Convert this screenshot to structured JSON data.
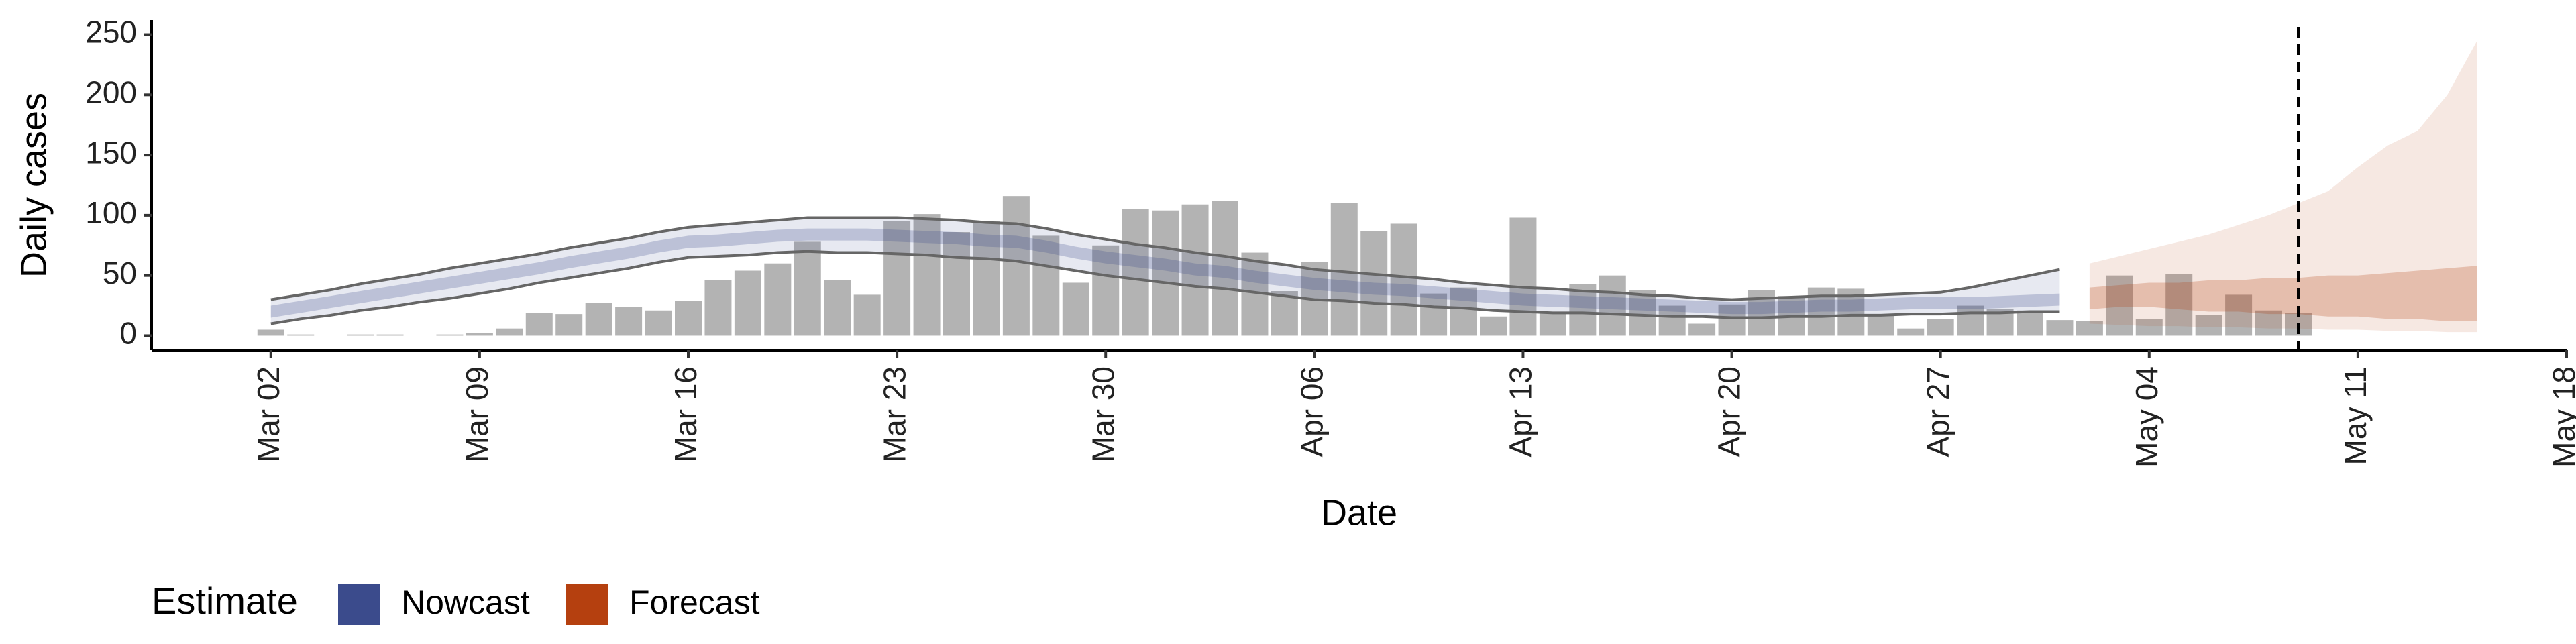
{
  "chart_data": {
    "type": "bar",
    "x_label": "Date",
    "y_label": "Daily cases",
    "x": [
      "Mar 02",
      "Mar 03",
      "Mar 04",
      "Mar 05",
      "Mar 06",
      "Mar 07",
      "Mar 08",
      "Mar 09",
      "Mar 10",
      "Mar 11",
      "Mar 12",
      "Mar 13",
      "Mar 14",
      "Mar 15",
      "Mar 16",
      "Mar 17",
      "Mar 18",
      "Mar 19",
      "Mar 20",
      "Mar 21",
      "Mar 22",
      "Mar 23",
      "Mar 24",
      "Mar 25",
      "Mar 26",
      "Mar 27",
      "Mar 28",
      "Mar 29",
      "Mar 30",
      "Mar 31",
      "Apr 01",
      "Apr 02",
      "Apr 03",
      "Apr 04",
      "Apr 05",
      "Apr 06",
      "Apr 07",
      "Apr 08",
      "Apr 09",
      "Apr 10",
      "Apr 11",
      "Apr 12",
      "Apr 13",
      "Apr 14",
      "Apr 15",
      "Apr 16",
      "Apr 17",
      "Apr 18",
      "Apr 19",
      "Apr 20",
      "Apr 21",
      "Apr 22",
      "Apr 23",
      "Apr 24",
      "Apr 25",
      "Apr 26",
      "Apr 27",
      "Apr 28",
      "Apr 29",
      "Apr 30",
      "May 01",
      "May 02",
      "May 03",
      "May 04",
      "May 05",
      "May 06",
      "May 07",
      "May 08",
      "May 09"
    ],
    "values": [
      5,
      1,
      0,
      1,
      1,
      0,
      1,
      2,
      6,
      19,
      18,
      27,
      24,
      21,
      29,
      46,
      54,
      60,
      78,
      46,
      34,
      95,
      101,
      86,
      95,
      116,
      83,
      44,
      75,
      105,
      104,
      109,
      112,
      69,
      37,
      61,
      110,
      87,
      93,
      35,
      40,
      16,
      98,
      20,
      43,
      50,
      38,
      25,
      10,
      26,
      38,
      33,
      40,
      39,
      17,
      6,
      14,
      25,
      22,
      21,
      13,
      12,
      50,
      14,
      51,
      17,
      34,
      21,
      19
    ],
    "color": "#b3b3b3",
    "bands": [
      {
        "name": "Nowcast",
        "color": "#3b4b8c",
        "outline_color": "#666666",
        "x": [
          "Mar 02",
          "Mar 03",
          "Mar 04",
          "Mar 05",
          "Mar 06",
          "Mar 07",
          "Mar 08",
          "Mar 09",
          "Mar 10",
          "Mar 11",
          "Mar 12",
          "Mar 13",
          "Mar 14",
          "Mar 15",
          "Mar 16",
          "Mar 17",
          "Mar 18",
          "Mar 19",
          "Mar 20",
          "Mar 21",
          "Mar 22",
          "Mar 23",
          "Mar 24",
          "Mar 25",
          "Mar 26",
          "Mar 27",
          "Mar 28",
          "Mar 29",
          "Mar 30",
          "Mar 31",
          "Apr 01",
          "Apr 02",
          "Apr 03",
          "Apr 04",
          "Apr 05",
          "Apr 06",
          "Apr 07",
          "Apr 08",
          "Apr 09",
          "Apr 10",
          "Apr 11",
          "Apr 12",
          "Apr 13",
          "Apr 14",
          "Apr 15",
          "Apr 16",
          "Apr 17",
          "Apr 18",
          "Apr 19",
          "Apr 20",
          "Apr 21",
          "Apr 22",
          "Apr 23",
          "Apr 24",
          "Apr 25",
          "Apr 26",
          "Apr 27",
          "Apr 28",
          "Apr 29",
          "Apr 30",
          "May 01"
        ],
        "upper_90": [
          30,
          34,
          38,
          43,
          47,
          51,
          56,
          60,
          64,
          68,
          73,
          77,
          81,
          86,
          90,
          92,
          94,
          96,
          98,
          98,
          98,
          98,
          97,
          96,
          94,
          93,
          89,
          84,
          80,
          76,
          73,
          69,
          66,
          62,
          59,
          55,
          53,
          51,
          49,
          47,
          44,
          42,
          40,
          39,
          37,
          36,
          34,
          33,
          31,
          30,
          31,
          32,
          33,
          33,
          34,
          35,
          36,
          40,
          45,
          50,
          55
        ],
        "lower_90": [
          10,
          14,
          17,
          21,
          24,
          28,
          31,
          35,
          39,
          44,
          48,
          52,
          56,
          61,
          65,
          66,
          67,
          69,
          70,
          69,
          69,
          68,
          67,
          65,
          64,
          62,
          58,
          54,
          50,
          47,
          44,
          41,
          39,
          36,
          33,
          30,
          29,
          27,
          26,
          24,
          23,
          21,
          20,
          19,
          19,
          18,
          17,
          16,
          16,
          15,
          15,
          16,
          16,
          17,
          17,
          18,
          18,
          19,
          19,
          20,
          20
        ],
        "upper_50": [
          25,
          29,
          33,
          37,
          41,
          45,
          49,
          53,
          57,
          61,
          66,
          70,
          74,
          79,
          83,
          84,
          86,
          88,
          89,
          89,
          89,
          88,
          87,
          86,
          84,
          83,
          79,
          74,
          70,
          67,
          64,
          60,
          58,
          54,
          51,
          48,
          46,
          44,
          43,
          41,
          39,
          37,
          35,
          34,
          33,
          32,
          31,
          30,
          29,
          28,
          28,
          29,
          30,
          30,
          31,
          32,
          32,
          32,
          33,
          34,
          35
        ],
        "lower_50": [
          15,
          19,
          23,
          27,
          31,
          35,
          39,
          43,
          47,
          51,
          56,
          60,
          64,
          69,
          73,
          74,
          76,
          78,
          79,
          79,
          79,
          78,
          77,
          76,
          74,
          73,
          69,
          64,
          60,
          57,
          54,
          50,
          48,
          44,
          41,
          38,
          36,
          34,
          33,
          31,
          29,
          27,
          25,
          24,
          23,
          22,
          21,
          20,
          19,
          18,
          18,
          19,
          20,
          20,
          21,
          22,
          22,
          22,
          23,
          24,
          25
        ]
      },
      {
        "name": "Forecast",
        "color": "#b5400f",
        "x": [
          "May 02",
          "May 03",
          "May 04",
          "May 05",
          "May 06",
          "May 07",
          "May 08",
          "May 09",
          "May 10",
          "May 11",
          "May 12",
          "May 13",
          "May 14",
          "May 15"
        ],
        "upper_90": [
          60,
          66,
          72,
          78,
          84,
          92,
          100,
          110,
          120,
          140,
          158,
          170,
          200,
          245
        ],
        "lower_90": [
          10,
          9,
          8,
          8,
          7,
          7,
          6,
          6,
          5,
          5,
          4,
          4,
          3,
          3
        ],
        "upper_50": [
          40,
          42,
          44,
          44,
          46,
          46,
          48,
          48,
          50,
          50,
          52,
          54,
          56,
          58
        ],
        "lower_50": [
          22,
          24,
          24,
          22,
          20,
          20,
          18,
          18,
          16,
          16,
          14,
          14,
          12,
          12
        ]
      }
    ],
    "legend_title": "Estimate",
    "reference_line": "May 09",
    "xlim": [
      "Feb 27",
      "May 18"
    ],
    "xticks": [
      "Mar 02",
      "Mar 09",
      "Mar 16",
      "Mar 23",
      "Mar 30",
      "Apr 06",
      "Apr 13",
      "Apr 20",
      "Apr 27",
      "May 04",
      "May 11",
      "May 18"
    ],
    "ylim": [
      -12,
      262
    ],
    "yticks": [
      0,
      50,
      100,
      150,
      200,
      250
    ],
    "grid": false
  }
}
